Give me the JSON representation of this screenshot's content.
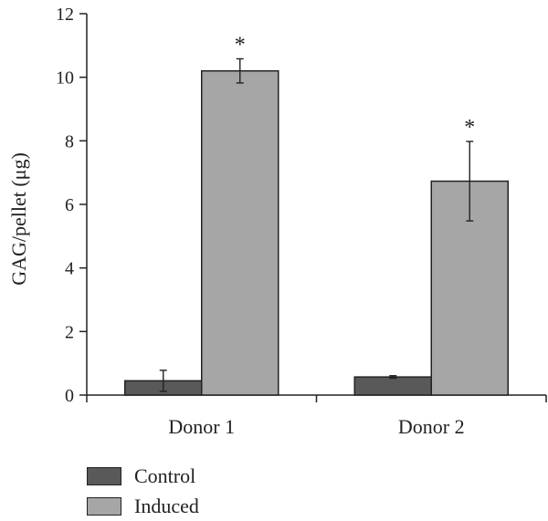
{
  "chart_data": {
    "type": "bar",
    "title": "",
    "xlabel": "",
    "ylabel": "GAG/pellet (μg)",
    "ylim": [
      0,
      12
    ],
    "yticks": [
      0,
      2,
      4,
      6,
      8,
      10,
      12
    ],
    "categories": [
      "Donor 1",
      "Donor 2"
    ],
    "series": [
      {
        "name": "Control",
        "color": "#595959",
        "values": [
          0.45,
          0.57
        ],
        "errors": [
          0.33,
          0.04
        ],
        "annotations": [
          "",
          ""
        ]
      },
      {
        "name": "Induced",
        "color": "#a6a6a6",
        "values": [
          10.2,
          6.73
        ],
        "errors": [
          0.38,
          1.25
        ],
        "annotations": [
          "*",
          "*"
        ]
      }
    ],
    "grid": false,
    "legend": "bottom-left"
  }
}
